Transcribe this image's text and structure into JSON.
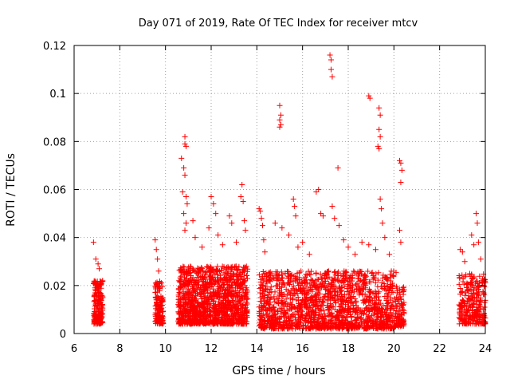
{
  "chart_data": {
    "type": "scatter",
    "title": "Day 071 of 2019, Rate Of TEC Index for receiver mtcv",
    "xlabel": "GPS time / hours",
    "ylabel": "ROTI / TECUs",
    "xlim": [
      6,
      24
    ],
    "ylim": [
      0,
      0.12
    ],
    "grid": true,
    "marker": "+",
    "color": "#ff0000",
    "x_ticks": [
      {
        "value": 6,
        "label": "6"
      },
      {
        "value": 8,
        "label": "8"
      },
      {
        "value": 10,
        "label": "10"
      },
      {
        "value": 12,
        "label": "12"
      },
      {
        "value": 14,
        "label": "14"
      },
      {
        "value": 16,
        "label": "16"
      },
      {
        "value": 18,
        "label": "18"
      },
      {
        "value": 20,
        "label": "20"
      },
      {
        "value": 22,
        "label": "22"
      },
      {
        "value": 24,
        "label": "24"
      }
    ],
    "y_ticks": [
      {
        "value": 0,
        "label": "0"
      },
      {
        "value": 0.02,
        "label": "0.02"
      },
      {
        "value": 0.04,
        "label": "0.04"
      },
      {
        "value": 0.06,
        "label": "0.06"
      },
      {
        "value": 0.08,
        "label": "0.08"
      },
      {
        "value": 0.1,
        "label": "0.1"
      },
      {
        "value": 0.12,
        "label": "0.12"
      }
    ],
    "clusters": [
      {
        "x_range": [
          6.85,
          7.25
        ],
        "y_range": [
          0.004,
          0.022
        ],
        "count": 180
      },
      {
        "x_range": [
          9.55,
          9.9
        ],
        "y_range": [
          0.004,
          0.022
        ],
        "count": 140
      },
      {
        "x_range": [
          10.55,
          13.6
        ],
        "y_range": [
          0.004,
          0.028
        ],
        "count": 1200
      },
      {
        "x_range": [
          14.1,
          20.1
        ],
        "y_range": [
          0.002,
          0.026
        ],
        "count": 1500
      },
      {
        "x_range": [
          20.1,
          20.45
        ],
        "y_range": [
          0.003,
          0.02
        ],
        "count": 90
      },
      {
        "x_range": [
          22.85,
          24.0
        ],
        "y_range": [
          0.004,
          0.025
        ],
        "count": 280
      }
    ],
    "points": [
      [
        6.85,
        0.038
      ],
      [
        6.95,
        0.031
      ],
      [
        7.05,
        0.029
      ],
      [
        7.1,
        0.027
      ],
      [
        9.55,
        0.039
      ],
      [
        9.6,
        0.035
      ],
      [
        9.65,
        0.031
      ],
      [
        9.7,
        0.026
      ],
      [
        10.7,
        0.073
      ],
      [
        10.8,
        0.069
      ],
      [
        10.85,
        0.082
      ],
      [
        10.85,
        0.079
      ],
      [
        10.9,
        0.078
      ],
      [
        10.85,
        0.066
      ],
      [
        10.75,
        0.059
      ],
      [
        10.9,
        0.057
      ],
      [
        10.95,
        0.054
      ],
      [
        10.8,
        0.05
      ],
      [
        10.9,
        0.046
      ],
      [
        10.85,
        0.043
      ],
      [
        11.2,
        0.047
      ],
      [
        11.3,
        0.04
      ],
      [
        11.6,
        0.036
      ],
      [
        11.9,
        0.044
      ],
      [
        12.0,
        0.057
      ],
      [
        12.1,
        0.054
      ],
      [
        12.2,
        0.05
      ],
      [
        12.3,
        0.041
      ],
      [
        12.5,
        0.037
      ],
      [
        12.8,
        0.049
      ],
      [
        12.9,
        0.046
      ],
      [
        13.1,
        0.038
      ],
      [
        13.3,
        0.057
      ],
      [
        13.35,
        0.062
      ],
      [
        13.4,
        0.055
      ],
      [
        13.45,
        0.047
      ],
      [
        13.5,
        0.043
      ],
      [
        14.1,
        0.052
      ],
      [
        14.15,
        0.051
      ],
      [
        14.2,
        0.048
      ],
      [
        14.25,
        0.045
      ],
      [
        14.3,
        0.039
      ],
      [
        14.35,
        0.034
      ],
      [
        14.8,
        0.046
      ],
      [
        15.0,
        0.095
      ],
      [
        15.05,
        0.091
      ],
      [
        15.0,
        0.089
      ],
      [
        15.05,
        0.087
      ],
      [
        15.0,
        0.086
      ],
      [
        15.1,
        0.044
      ],
      [
        15.4,
        0.041
      ],
      [
        15.6,
        0.056
      ],
      [
        15.65,
        0.053
      ],
      [
        15.7,
        0.049
      ],
      [
        15.8,
        0.036
      ],
      [
        16.0,
        0.038
      ],
      [
        16.3,
        0.033
      ],
      [
        16.6,
        0.059
      ],
      [
        16.7,
        0.06
      ],
      [
        16.8,
        0.05
      ],
      [
        16.9,
        0.049
      ],
      [
        17.2,
        0.116
      ],
      [
        17.25,
        0.114
      ],
      [
        17.25,
        0.11
      ],
      [
        17.3,
        0.107
      ],
      [
        17.3,
        0.053
      ],
      [
        17.4,
        0.048
      ],
      [
        17.55,
        0.069
      ],
      [
        17.6,
        0.045
      ],
      [
        17.8,
        0.039
      ],
      [
        18.0,
        0.036
      ],
      [
        18.3,
        0.033
      ],
      [
        18.6,
        0.038
      ],
      [
        18.9,
        0.099
      ],
      [
        18.95,
        0.098
      ],
      [
        18.9,
        0.037
      ],
      [
        19.2,
        0.035
      ],
      [
        19.35,
        0.094
      ],
      [
        19.4,
        0.091
      ],
      [
        19.35,
        0.085
      ],
      [
        19.4,
        0.082
      ],
      [
        19.3,
        0.078
      ],
      [
        19.35,
        0.077
      ],
      [
        19.4,
        0.056
      ],
      [
        19.45,
        0.052
      ],
      [
        19.5,
        0.046
      ],
      [
        19.6,
        0.04
      ],
      [
        19.8,
        0.033
      ],
      [
        20.25,
        0.072
      ],
      [
        20.3,
        0.071
      ],
      [
        20.35,
        0.068
      ],
      [
        20.3,
        0.063
      ],
      [
        20.25,
        0.043
      ],
      [
        20.3,
        0.038
      ],
      [
        22.9,
        0.035
      ],
      [
        23.0,
        0.034
      ],
      [
        23.1,
        0.03
      ],
      [
        23.4,
        0.041
      ],
      [
        23.5,
        0.037
      ],
      [
        23.6,
        0.05
      ],
      [
        23.65,
        0.046
      ],
      [
        23.7,
        0.038
      ],
      [
        23.8,
        0.031
      ],
      [
        23.9,
        0.022
      ]
    ]
  }
}
